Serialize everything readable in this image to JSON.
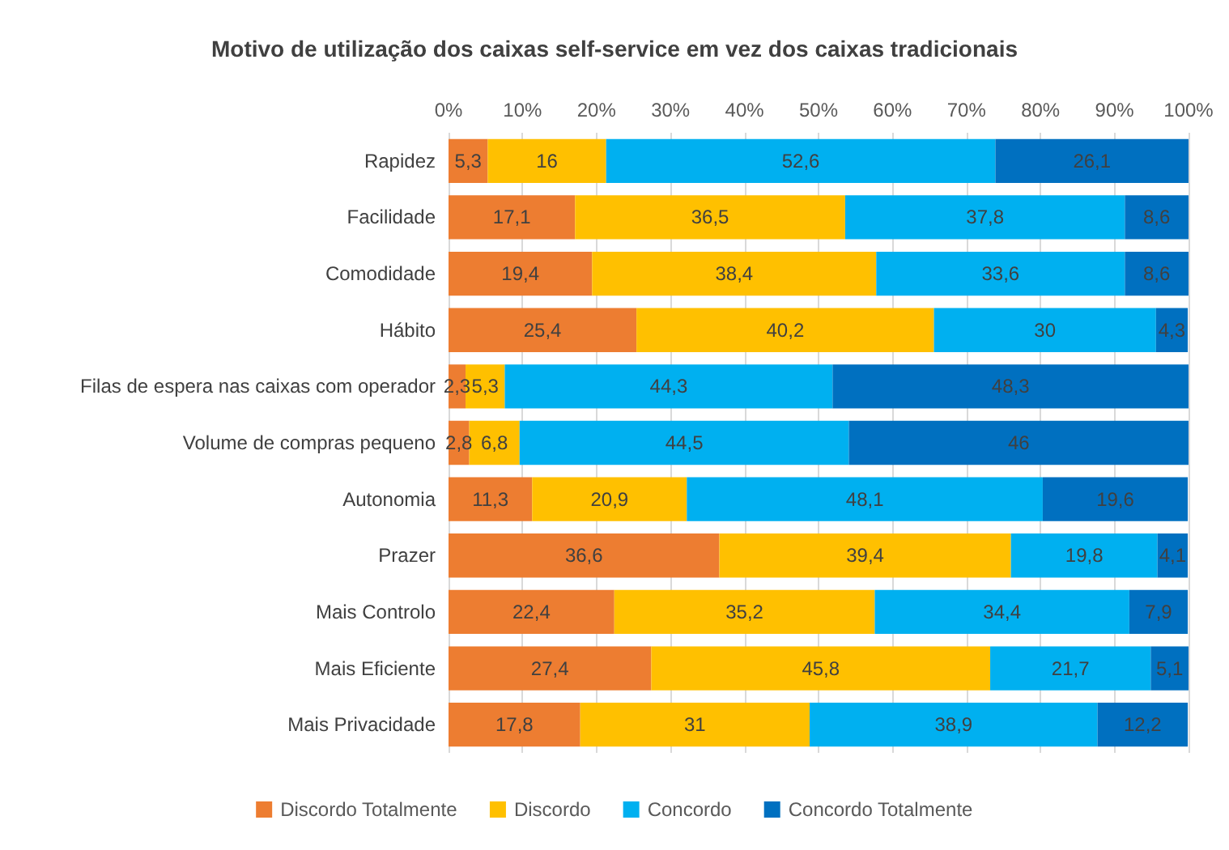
{
  "chart_data": {
    "type": "bar",
    "orientation": "horizontal",
    "stacked": true,
    "title": "Motivo de utilização dos caixas self-service em vez dos caixas tradicionais",
    "categories": [
      "Rapidez",
      "Facilidade",
      "Comodidade",
      "Hábito",
      "Filas de espera nas caixas com operador",
      "Volume de compras pequeno",
      "Autonomia",
      "Prazer",
      "Mais Controlo",
      "Mais Eficiente",
      "Mais Privacidade"
    ],
    "series": [
      {
        "name": "Discordo Totalmente",
        "color": "#ed7d31",
        "values": [
          5.3,
          17.1,
          19.4,
          25.4,
          2.3,
          2.8,
          11.3,
          36.6,
          22.4,
          27.4,
          17.8
        ],
        "value_labels": [
          "5,3",
          "17,1",
          "19,4",
          "25,4",
          "2,3",
          "2,8",
          "11,3",
          "36,6",
          "22,4",
          "27,4",
          "17,8"
        ]
      },
      {
        "name": "Discordo",
        "color": "#ffc000",
        "values": [
          16,
          36.5,
          38.4,
          40.2,
          5.3,
          6.8,
          20.9,
          39.4,
          35.2,
          45.8,
          31
        ],
        "value_labels": [
          "16",
          "36,5",
          "38,4",
          "40,2",
          "5,3",
          "6,8",
          "20,9",
          "39,4",
          "35,2",
          "45,8",
          "31"
        ]
      },
      {
        "name": "Concordo",
        "color": "#00b0f0",
        "values": [
          52.6,
          37.8,
          33.6,
          30,
          44.3,
          44.5,
          48.1,
          19.8,
          34.4,
          21.7,
          38.9
        ],
        "value_labels": [
          "52,6",
          "37,8",
          "33,6",
          "30",
          "44,3",
          "44,5",
          "48,1",
          "19,8",
          "34,4",
          "21,7",
          "38,9"
        ]
      },
      {
        "name": "Concordo Totalmente",
        "color": "#0070c0",
        "values": [
          26.1,
          8.6,
          8.6,
          4.3,
          48.3,
          46,
          19.6,
          4.1,
          7.9,
          5.1,
          12.2
        ],
        "value_labels": [
          "26,1",
          "8,6",
          "8,6",
          "4,3",
          "48,3",
          "46",
          "19,6",
          "4,1",
          "7,9",
          "5,1",
          "12,2"
        ]
      }
    ],
    "xlim": [
      0,
      100
    ],
    "xticks": [
      {
        "value": 0,
        "label": "0%"
      },
      {
        "value": 10,
        "label": "10%"
      },
      {
        "value": 20,
        "label": "20%"
      },
      {
        "value": 30,
        "label": "30%"
      },
      {
        "value": 40,
        "label": "40%"
      },
      {
        "value": 50,
        "label": "50%"
      },
      {
        "value": 60,
        "label": "60%"
      },
      {
        "value": 70,
        "label": "70%"
      },
      {
        "value": 80,
        "label": "80%"
      },
      {
        "value": 90,
        "label": "90%"
      },
      {
        "value": 100,
        "label": "100%"
      }
    ],
    "grid": "x",
    "legend": "bottom"
  }
}
